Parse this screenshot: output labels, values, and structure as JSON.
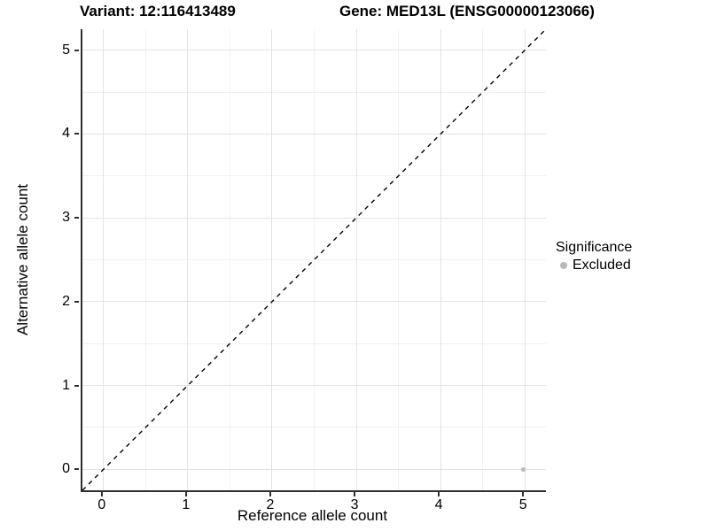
{
  "header": {
    "left_title": "Variant: 12:116413489",
    "right_title": "Gene: MED13L (ENSG00000123066)"
  },
  "legend": {
    "title": "Significance",
    "items": [
      {
        "label": "Excluded",
        "color": "#b8b8b8"
      }
    ]
  },
  "chart_data": {
    "type": "scatter",
    "title_left": "Variant: 12:116413489",
    "title_right": "Gene: MED13L (ENSG00000123066)",
    "xlabel": "Reference allele count",
    "ylabel": "Alternative allele count",
    "xlim": [
      -0.25,
      5.25
    ],
    "ylim": [
      -0.25,
      5.25
    ],
    "xticks": [
      0,
      1,
      2,
      3,
      4,
      5
    ],
    "yticks": [
      0,
      1,
      2,
      3,
      4,
      5
    ],
    "x_minor_ticks": [
      0.5,
      1.5,
      2.5,
      3.5,
      4.5
    ],
    "y_minor_ticks": [
      0.5,
      1.5,
      2.5,
      3.5,
      4.5
    ],
    "grid": "major+minor",
    "legend_position": "right",
    "series": [
      {
        "name": "Excluded",
        "color": "#b8b8b8",
        "points": [
          {
            "x": 5,
            "y": 0
          }
        ]
      }
    ],
    "reference_line": {
      "equation": "y = x",
      "style": "dashed",
      "color": "#000000",
      "from": [
        -0.25,
        -0.25
      ],
      "to": [
        5.25,
        5.25
      ]
    },
    "colors": {
      "major_grid": "#e3e3e3",
      "minor_grid": "#f1f1f1",
      "axis_line": "#2f2f2f",
      "point": "#b8b8b8"
    }
  }
}
